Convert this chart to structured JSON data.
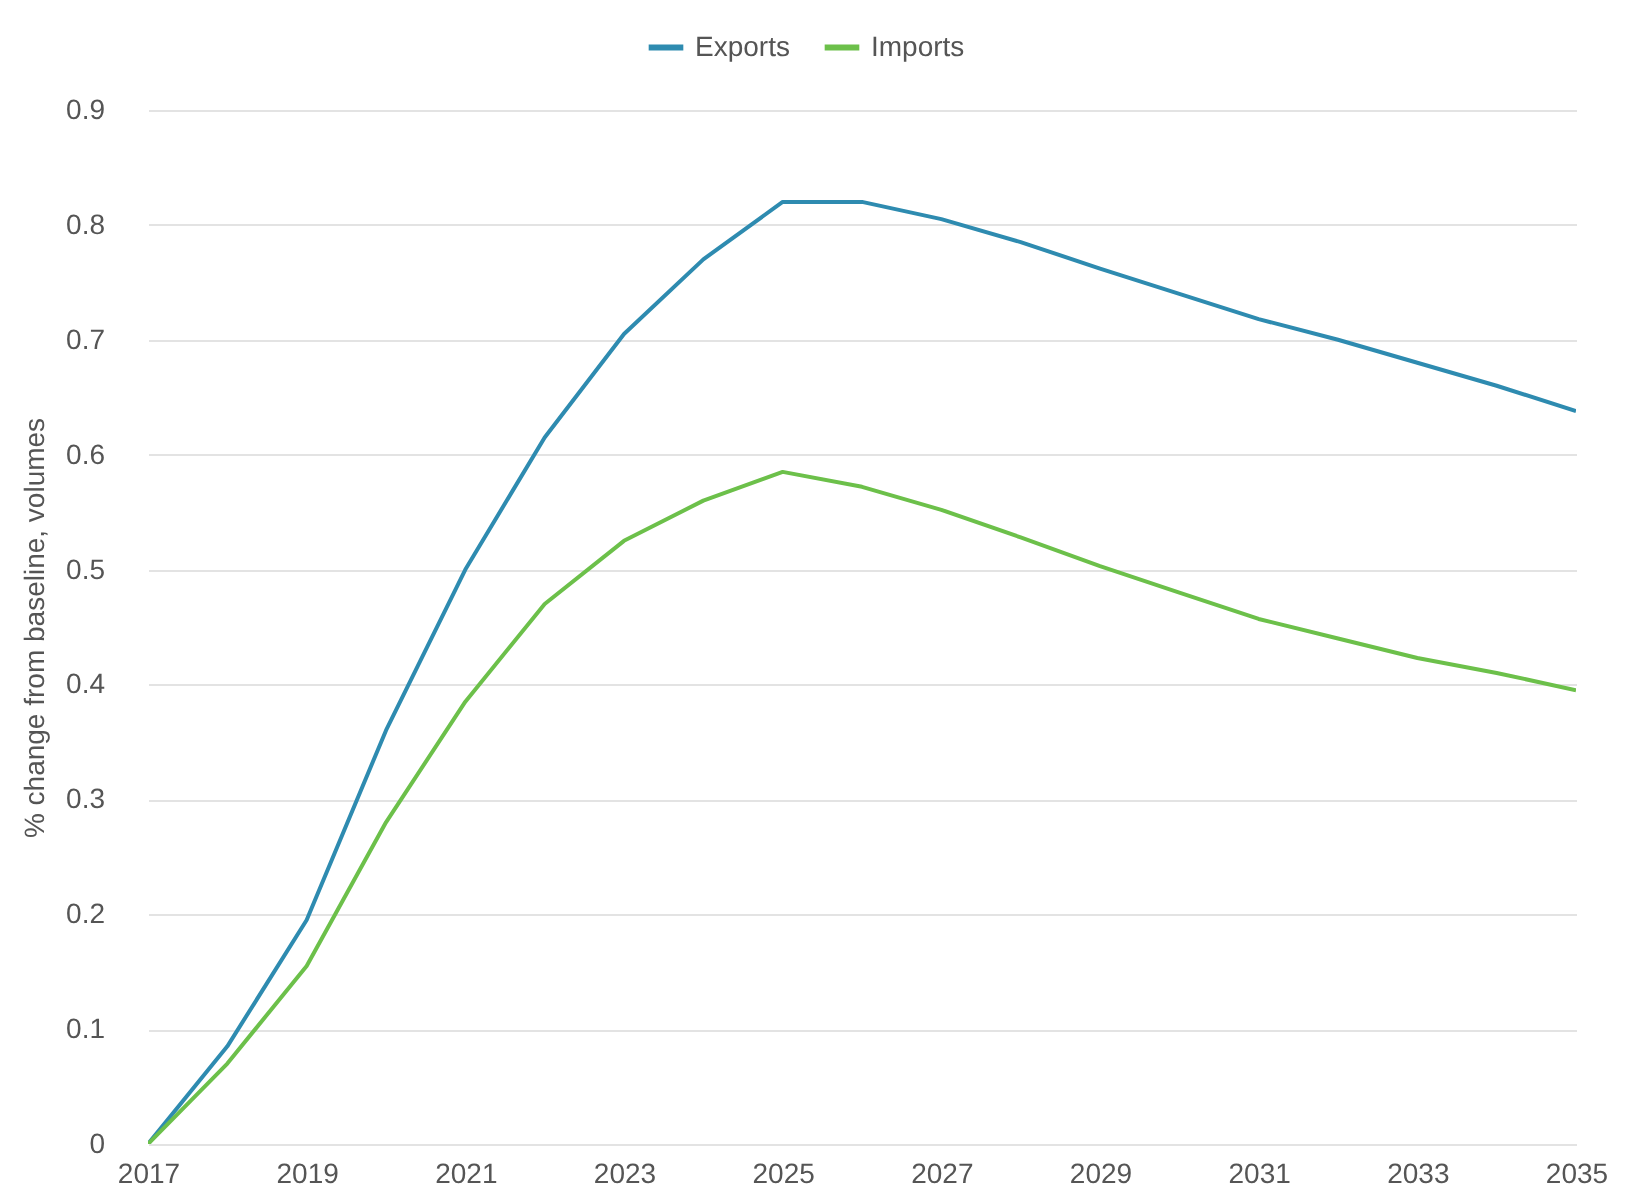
{
  "chart_data": {
    "type": "line",
    "ylabel": "% change from baseline, volumes",
    "x": [
      2017,
      2018,
      2019,
      2020,
      2021,
      2022,
      2023,
      2024,
      2025,
      2026,
      2027,
      2028,
      2029,
      2030,
      2031,
      2032,
      2033,
      2034,
      2035
    ],
    "series": [
      {
        "name": "Exports",
        "color": "#2e8bb0",
        "values": [
          0,
          0.085,
          0.195,
          0.36,
          0.5,
          0.615,
          0.705,
          0.77,
          0.82,
          0.82,
          0.805,
          0.785,
          0.762,
          0.74,
          0.718,
          0.7,
          0.68,
          0.66,
          0.638
        ]
      },
      {
        "name": "Imports",
        "color": "#6cc04a",
        "values": [
          0,
          0.07,
          0.155,
          0.28,
          0.385,
          0.47,
          0.525,
          0.56,
          0.585,
          0.572,
          0.552,
          0.528,
          0.503,
          0.48,
          0.457,
          0.44,
          0.423,
          0.41,
          0.395
        ]
      }
    ],
    "xlim": [
      2017,
      2035
    ],
    "xticks": [
      2017,
      2019,
      2021,
      2023,
      2025,
      2027,
      2029,
      2031,
      2033,
      2035
    ],
    "ylim": [
      0,
      0.9
    ],
    "yticks": [
      0,
      0.1,
      0.2,
      0.3,
      0.4,
      0.5,
      0.6,
      0.7,
      0.8,
      0.9
    ],
    "grid": "y",
    "legend": "top",
    "marker": "none",
    "line_style": "solid"
  }
}
